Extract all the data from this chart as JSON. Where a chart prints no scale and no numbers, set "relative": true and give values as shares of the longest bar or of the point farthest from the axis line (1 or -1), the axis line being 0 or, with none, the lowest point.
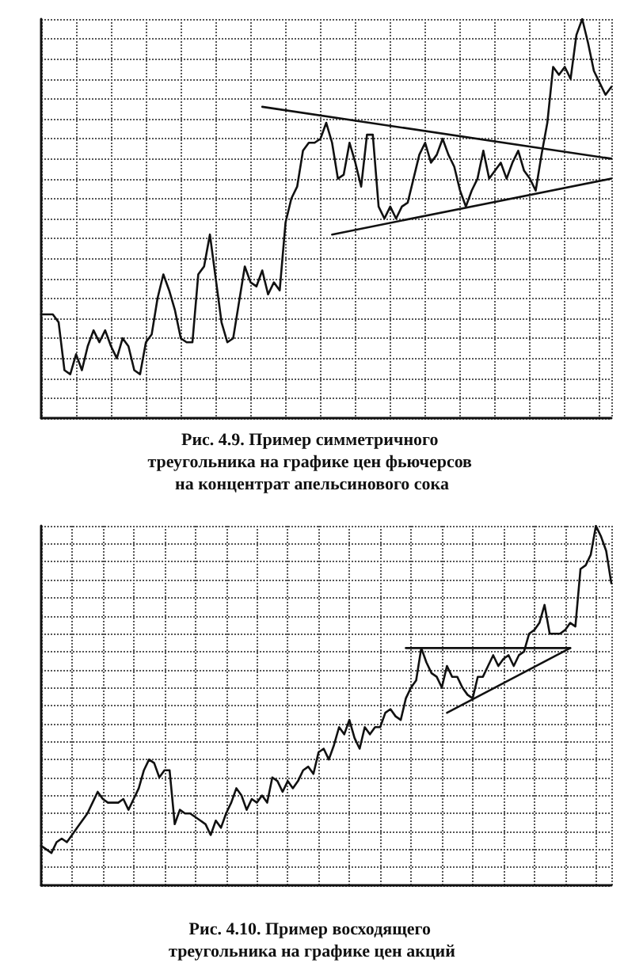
{
  "chart_data": [
    {
      "type": "line",
      "title": "Рис. 4.9. Пример симметричного треугольника на графике цен фьючерсов на концентрат апельсинового сока",
      "relative": true,
      "grid": true,
      "categories": [
        null,
        null,
        null,
        null,
        null,
        null,
        null,
        null,
        null,
        null,
        null,
        null,
        null,
        null,
        null,
        null,
        null,
        null,
        null,
        null,
        null,
        null,
        null,
        null,
        null,
        null,
        null,
        null,
        null,
        null,
        null,
        null,
        null,
        null,
        null,
        null,
        null,
        null,
        null,
        null,
        null,
        null,
        null,
        null,
        null,
        null,
        null,
        null,
        null,
        null,
        null,
        null,
        null,
        null,
        null,
        null,
        null,
        null,
        null,
        null,
        null,
        null,
        null,
        null,
        null,
        null,
        null,
        null,
        null,
        null,
        null,
        null,
        null,
        null,
        null,
        null,
        null,
        null,
        null,
        null,
        null,
        null,
        null,
        null,
        null,
        null,
        null,
        null,
        null,
        null,
        null,
        null,
        null,
        null,
        null,
        null,
        null,
        null,
        null
      ],
      "series": [
        {
          "color": "#111111",
          "values": [
            0.26,
            0.26,
            0.26,
            0.24,
            0.12,
            0.11,
            0.16,
            0.12,
            0.18,
            0.22,
            0.19,
            0.22,
            0.18,
            0.15,
            0.2,
            0.18,
            0.12,
            0.11,
            0.19,
            0.21,
            0.3,
            0.36,
            0.32,
            0.27,
            0.2,
            0.19,
            0.19,
            0.36,
            0.38,
            0.46,
            0.35,
            0.24,
            0.19,
            0.2,
            0.29,
            0.38,
            0.34,
            0.33,
            0.37,
            0.31,
            0.34,
            0.32,
            0.49,
            0.55,
            0.58,
            0.67,
            0.69,
            0.69,
            0.7,
            0.74,
            0.69,
            0.6,
            0.61,
            0.69,
            0.64,
            0.58,
            0.71,
            0.71,
            0.53,
            0.5,
            0.53,
            0.5,
            0.53,
            0.54,
            0.6,
            0.66,
            0.69,
            0.64,
            0.66,
            0.7,
            0.66,
            0.63,
            0.57,
            0.53,
            0.57,
            0.6,
            0.67,
            0.6,
            0.62,
            0.64,
            0.6,
            0.64,
            0.67,
            0.62,
            0.6,
            0.57,
            0.66,
            0.74,
            0.88,
            0.86,
            0.88,
            0.85,
            0.96,
            1,
            0.94,
            0.87,
            0.84,
            0.81,
            0.83
          ]
        },
        {
          "color": "#111111",
          "values": [
            null,
            null,
            null,
            null,
            null,
            null,
            null,
            null,
            null,
            null,
            null,
            null,
            null,
            null,
            null,
            null,
            null,
            null,
            null,
            null,
            null,
            null,
            null,
            null,
            null,
            null,
            null,
            null,
            null,
            null,
            null,
            null,
            null,
            null,
            null,
            null,
            null,
            null,
            0.78,
            null,
            null,
            null,
            null,
            null,
            null,
            null,
            null,
            null,
            null,
            null,
            null,
            null,
            null,
            null,
            null,
            null,
            null,
            null,
            null,
            null,
            null,
            null,
            null,
            null,
            null,
            null,
            null,
            null,
            null,
            null,
            null,
            null,
            null,
            null,
            null,
            null,
            null,
            null,
            null,
            null,
            null,
            null,
            null,
            null,
            null,
            null,
            null,
            null,
            null,
            null,
            null,
            null,
            null,
            null,
            null,
            null,
            null,
            null,
            0.65
          ]
        },
        {
          "color": "#111111",
          "values": [
            null,
            null,
            null,
            null,
            null,
            null,
            null,
            null,
            null,
            null,
            null,
            null,
            null,
            null,
            null,
            null,
            null,
            null,
            null,
            null,
            null,
            null,
            null,
            null,
            null,
            null,
            null,
            null,
            null,
            null,
            null,
            null,
            null,
            null,
            null,
            null,
            null,
            null,
            null,
            null,
            null,
            null,
            null,
            null,
            null,
            null,
            null,
            null,
            null,
            null,
            0.46,
            null,
            null,
            null,
            null,
            null,
            null,
            null,
            null,
            null,
            null,
            null,
            null,
            null,
            null,
            null,
            null,
            null,
            null,
            null,
            null,
            null,
            null,
            null,
            null,
            null,
            null,
            null,
            null,
            null,
            null,
            null,
            null,
            null,
            null,
            null,
            null,
            null,
            null,
            null,
            null,
            null,
            null,
            null,
            null,
            null,
            null,
            null,
            0.6
          ]
        }
      ]
    },
    {
      "type": "line",
      "title": "Рис. 4.10. Пример восходящего треугольника на графике цен акций",
      "relative": true,
      "grid": true,
      "categories": [
        null,
        null,
        null,
        null,
        null,
        null,
        null,
        null,
        null,
        null,
        null,
        null,
        null,
        null,
        null,
        null,
        null,
        null,
        null,
        null,
        null,
        null,
        null,
        null,
        null,
        null,
        null,
        null,
        null,
        null,
        null,
        null,
        null,
        null,
        null,
        null,
        null,
        null,
        null,
        null,
        null,
        null,
        null,
        null,
        null,
        null,
        null,
        null,
        null,
        null,
        null,
        null,
        null,
        null,
        null,
        null,
        null,
        null,
        null,
        null,
        null,
        null,
        null,
        null,
        null,
        null,
        null,
        null,
        null,
        null,
        null,
        null,
        null,
        null,
        null,
        null,
        null,
        null,
        null,
        null,
        null,
        null,
        null,
        null,
        null,
        null,
        null,
        null,
        null,
        null,
        null,
        null,
        null,
        null,
        null,
        null,
        null,
        null,
        null,
        null,
        null,
        null,
        null,
        null,
        null,
        null,
        null,
        null,
        null,
        null,
        null,
        null
      ],
      "series": [
        {
          "color": "#111111",
          "values": [
            0.11,
            0.1,
            0.09,
            0.12,
            0.13,
            0.12,
            0.14,
            0.16,
            0.18,
            0.2,
            0.23,
            0.26,
            0.24,
            0.23,
            0.23,
            0.23,
            0.24,
            0.21,
            0.24,
            0.27,
            0.32,
            0.35,
            0.34,
            0.3,
            0.32,
            0.32,
            0.17,
            0.21,
            0.2,
            0.2,
            0.19,
            0.18,
            0.17,
            0.14,
            0.18,
            0.16,
            0.2,
            0.23,
            0.27,
            0.25,
            0.21,
            0.24,
            0.23,
            0.25,
            0.23,
            0.3,
            0.29,
            0.26,
            0.29,
            0.27,
            0.29,
            0.32,
            0.33,
            0.31,
            0.37,
            0.38,
            0.35,
            0.39,
            0.44,
            0.42,
            0.46,
            0.41,
            0.38,
            0.44,
            0.42,
            0.44,
            0.44,
            0.48,
            0.49,
            0.47,
            0.46,
            0.52,
            0.55,
            0.57,
            0.66,
            0.62,
            0.59,
            0.58,
            0.55,
            0.61,
            0.58,
            0.58,
            0.55,
            0.53,
            0.52,
            0.58,
            0.58,
            0.61,
            0.64,
            0.61,
            0.63,
            0.64,
            0.61,
            0.64,
            0.65,
            0.7,
            0.71,
            0.73,
            0.78,
            0.7,
            0.7,
            0.7,
            0.71,
            0.73,
            0.72,
            0.88,
            0.89,
            0.92,
            1,
            0.97,
            0.93,
            0.84
          ]
        },
        {
          "color": "#111111",
          "values": [
            null,
            null,
            null,
            null,
            null,
            null,
            null,
            null,
            null,
            null,
            null,
            null,
            null,
            null,
            null,
            null,
            null,
            null,
            null,
            null,
            null,
            null,
            null,
            null,
            null,
            null,
            null,
            null,
            null,
            null,
            null,
            null,
            null,
            null,
            null,
            null,
            null,
            null,
            null,
            null,
            null,
            null,
            null,
            null,
            null,
            null,
            null,
            null,
            null,
            null,
            null,
            null,
            null,
            null,
            null,
            null,
            null,
            null,
            null,
            null,
            null,
            null,
            null,
            null,
            null,
            null,
            null,
            null,
            null,
            null,
            null,
            0.66,
            null,
            null,
            null,
            null,
            null,
            null,
            null,
            null,
            null,
            null,
            null,
            null,
            null,
            null,
            null,
            null,
            null,
            null,
            null,
            null,
            null,
            null,
            null,
            null,
            null,
            null,
            null,
            null,
            null,
            null,
            null,
            0.66,
            null,
            null,
            null,
            null,
            null,
            null,
            null,
            null
          ]
        },
        {
          "color": "#111111",
          "values": [
            null,
            null,
            null,
            null,
            null,
            null,
            null,
            null,
            null,
            null,
            null,
            null,
            null,
            null,
            null,
            null,
            null,
            null,
            null,
            null,
            null,
            null,
            null,
            null,
            null,
            null,
            null,
            null,
            null,
            null,
            null,
            null,
            null,
            null,
            null,
            null,
            null,
            null,
            null,
            null,
            null,
            null,
            null,
            null,
            null,
            null,
            null,
            null,
            null,
            null,
            null,
            null,
            null,
            null,
            null,
            null,
            null,
            null,
            null,
            null,
            null,
            null,
            null,
            null,
            null,
            null,
            null,
            null,
            null,
            null,
            null,
            null,
            null,
            null,
            null,
            null,
            null,
            null,
            null,
            0.48,
            null,
            null,
            null,
            null,
            null,
            null,
            null,
            null,
            null,
            null,
            null,
            null,
            null,
            null,
            null,
            null,
            null,
            null,
            null,
            null,
            null,
            null,
            null,
            0.66,
            null,
            null,
            null,
            null,
            null,
            null,
            null,
            null
          ]
        }
      ]
    }
  ]
}
